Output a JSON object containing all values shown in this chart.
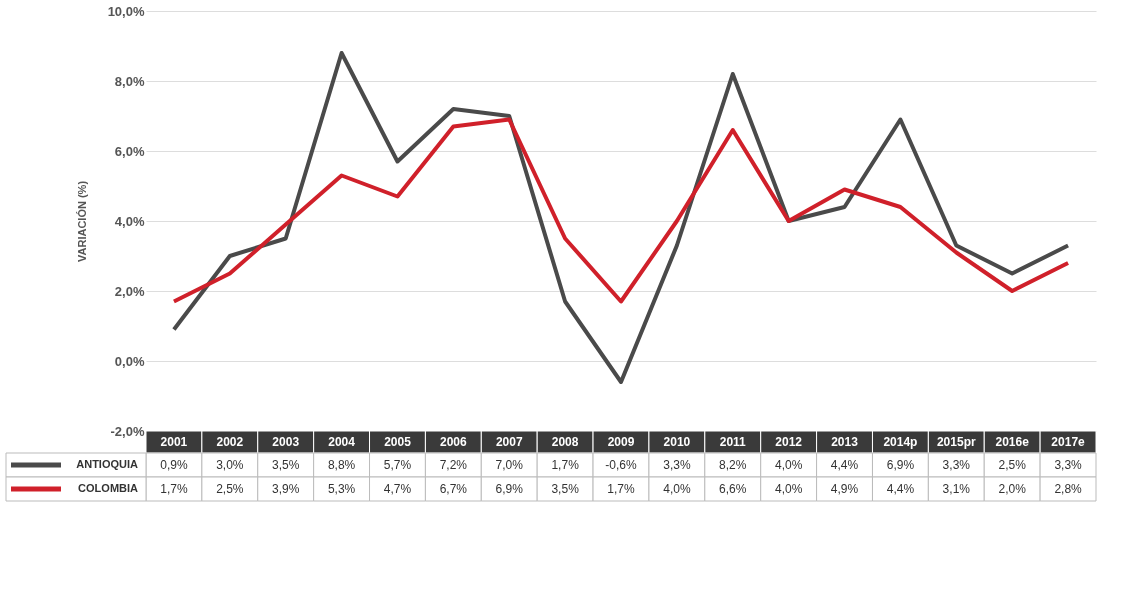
{
  "chart_data": {
    "type": "line",
    "ylabel": "VARIACIÓN (%)",
    "categories": [
      "2001",
      "2002",
      "2003",
      "2004",
      "2005",
      "2006",
      "2007",
      "2008",
      "2009",
      "2010",
      "2011",
      "2012",
      "2013",
      "2014p",
      "2015pr",
      "2016e",
      "2017e"
    ],
    "series": [
      {
        "name": "ANTIOQUIA",
        "color": "#4a4a4a",
        "values": [
          0.9,
          3.0,
          3.5,
          8.8,
          5.7,
          7.2,
          7.0,
          1.7,
          -0.6,
          3.3,
          8.2,
          4.0,
          4.4,
          6.9,
          3.3,
          2.5,
          3.3
        ],
        "value_labels": [
          "0,9%",
          "3,0%",
          "3,5%",
          "8,8%",
          "5,7%",
          "7,2%",
          "7,0%",
          "1,7%",
          "-0,6%",
          "3,3%",
          "8,2%",
          "4,0%",
          "4,4%",
          "6,9%",
          "3,3%",
          "2,5%",
          "3,3%"
        ]
      },
      {
        "name": "COLOMBIA",
        "color": "#d0202a",
        "values": [
          1.7,
          2.5,
          3.9,
          5.3,
          4.7,
          6.7,
          6.9,
          3.5,
          1.7,
          4.0,
          6.6,
          4.0,
          4.9,
          4.4,
          3.1,
          2.0,
          2.8
        ],
        "value_labels": [
          "1,7%",
          "2,5%",
          "3,9%",
          "5,3%",
          "4,7%",
          "6,7%",
          "6,9%",
          "3,5%",
          "1,7%",
          "4,0%",
          "6,6%",
          "4,0%",
          "4,9%",
          "4,4%",
          "3,1%",
          "2,0%",
          "2,8%"
        ]
      }
    ],
    "ylim": [
      -2,
      10
    ],
    "yticks": [
      {
        "value": -2,
        "label": "-2,0%"
      },
      {
        "value": 0,
        "label": "0,0%"
      },
      {
        "value": 2,
        "label": "2,0%"
      },
      {
        "value": 4,
        "label": "4,0%"
      },
      {
        "value": 6,
        "label": "6,0%"
      },
      {
        "value": 8,
        "label": "8,0%"
      },
      {
        "value": 10,
        "label": "10,0%"
      }
    ],
    "grid": "y",
    "legend": "bottom left",
    "marker": "none",
    "line_style": "solid"
  }
}
